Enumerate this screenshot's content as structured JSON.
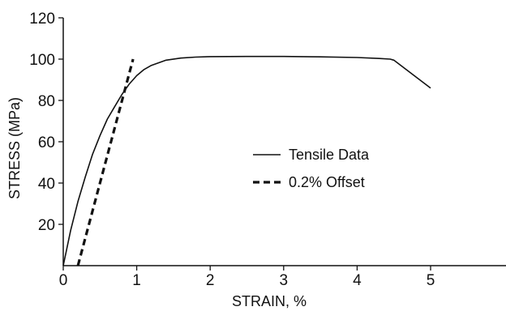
{
  "chart_data": {
    "type": "line",
    "xlabel": "STRAIN, %",
    "ylabel": "STRESS (MPa)",
    "xlim": [
      0,
      6
    ],
    "ylim": [
      0,
      120
    ],
    "x_ticks": [
      "0",
      "1",
      "2",
      "3",
      "4",
      "5"
    ],
    "y_ticks": [
      "20",
      "40",
      "60",
      "80",
      "100",
      "120"
    ],
    "grid": false,
    "legend_position": "center-right",
    "series": [
      {
        "name": "Tensile Data",
        "line_style": "solid",
        "color": "#111111",
        "x": [
          0,
          0.1,
          0.2,
          0.3,
          0.4,
          0.5,
          0.6,
          0.7,
          0.8,
          0.9,
          1.0,
          1.1,
          1.2,
          1.4,
          1.6,
          1.8,
          2.0,
          2.5,
          3.0,
          3.5,
          4.0,
          4.3,
          4.45,
          4.5,
          5.0
        ],
        "y": [
          0,
          17,
          31,
          43,
          54,
          63,
          71,
          77,
          83,
          88,
          92,
          95,
          97,
          99.5,
          100.5,
          101,
          101.2,
          101.3,
          101.3,
          101.1,
          100.8,
          100.3,
          100,
          99.5,
          86
        ]
      },
      {
        "name": "0.2% Offset",
        "line_style": "dashed",
        "color": "#111111",
        "x": [
          0.2,
          0.95
        ],
        "y": [
          0,
          100
        ]
      }
    ]
  }
}
